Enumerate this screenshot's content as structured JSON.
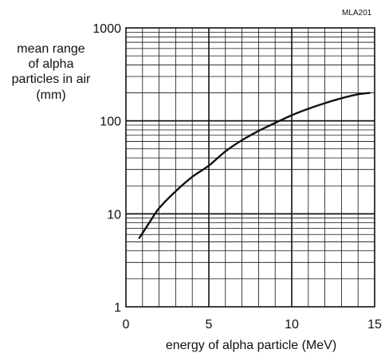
{
  "figure_code": "MLA201",
  "chart_data": {
    "type": "line",
    "title": "",
    "xlabel": "energy of alpha particle (MeV)",
    "ylabel_lines": [
      "mean range",
      "of alpha",
      "particles in air",
      "(mm)"
    ],
    "xlim": [
      0,
      15
    ],
    "ylim": [
      1,
      1000
    ],
    "yscale": "log",
    "grid": true,
    "x_ticks": [
      0,
      5,
      10,
      15
    ],
    "y_ticks": [
      1,
      10,
      100,
      1000
    ],
    "x_tick_labels": [
      "0",
      "5",
      "10",
      "15"
    ],
    "y_tick_labels": [
      "1",
      "10",
      "100",
      "1000"
    ],
    "series": [
      {
        "x": [
          0.8,
          1,
          1.5,
          2,
          3,
          4,
          5,
          6,
          7,
          8,
          9,
          10,
          11,
          12,
          13,
          14,
          14.7
        ],
        "y": [
          5.5,
          6.2,
          8.5,
          11.5,
          17.5,
          25,
          33,
          47,
          62,
          78,
          95,
          115,
          135,
          155,
          175,
          193,
          200
        ]
      }
    ]
  }
}
